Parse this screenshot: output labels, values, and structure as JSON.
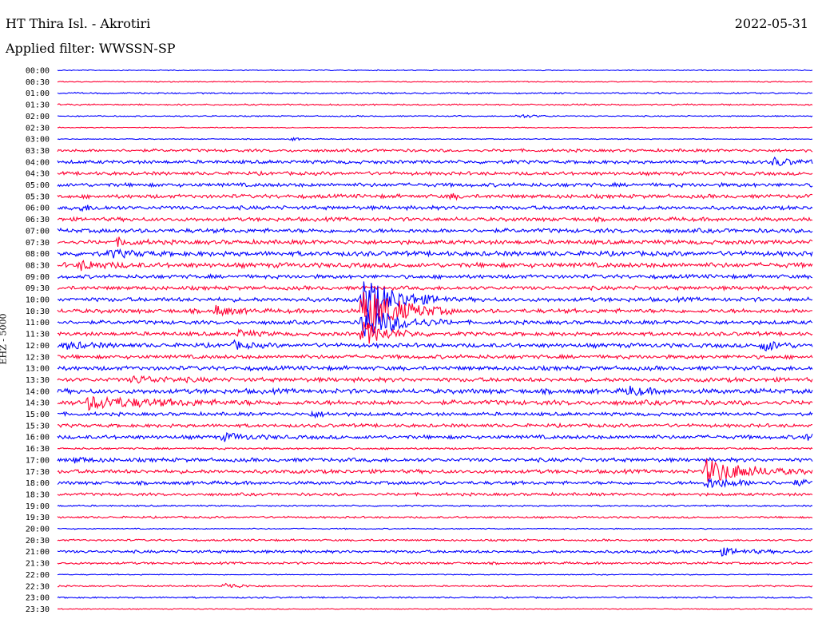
{
  "header": {
    "station": "HT Thira Isl. - Akrotiri",
    "date": "2022-05-31",
    "filter": "Applied filter: WWSSN-SP"
  },
  "chart_data": {
    "type": "line",
    "title": "HT Thira Isl. - Akrotiri",
    "ylabel": "EHZ - 5000",
    "colors": [
      "#0000ff",
      "#ff0033"
    ],
    "categories": [
      "00:00",
      "00:30",
      "01:00",
      "01:30",
      "02:00",
      "02:30",
      "03:00",
      "03:30",
      "04:00",
      "04:30",
      "05:00",
      "05:30",
      "06:00",
      "06:30",
      "07:00",
      "07:30",
      "08:00",
      "08:30",
      "09:00",
      "09:30",
      "10:00",
      "10:30",
      "11:00",
      "11:30",
      "12:00",
      "12:30",
      "13:00",
      "13:30",
      "14:00",
      "14:30",
      "15:00",
      "15:30",
      "16:00",
      "16:30",
      "17:00",
      "17:30",
      "18:00",
      "18:30",
      "19:00",
      "19:30",
      "20:00",
      "20:30",
      "21:00",
      "21:30",
      "22:00",
      "22:30",
      "23:00",
      "23:30"
    ],
    "noise": [
      0.5,
      0.5,
      0.8,
      0.8,
      0.6,
      0.5,
      0.5,
      1.5,
      1.8,
      1.8,
      2.0,
      2.0,
      2.0,
      2.0,
      2.2,
      2.2,
      2.5,
      2.5,
      2.0,
      2.0,
      2.2,
      2.2,
      2.0,
      2.0,
      2.2,
      2.0,
      2.2,
      2.2,
      2.5,
      2.5,
      1.8,
      1.8,
      2.0,
      1.0,
      2.0,
      2.0,
      1.8,
      1.5,
      0.8,
      1.0,
      0.6,
      1.0,
      1.5,
      1.2,
      0.5,
      0.8,
      0.8,
      0.5
    ],
    "events": [
      {
        "row": "02:00",
        "t": 0.61,
        "amp": 2.5,
        "dur": 0.02
      },
      {
        "row": "03:00",
        "t": 0.31,
        "amp": 2,
        "dur": 0.01
      },
      {
        "row": "04:00",
        "t": 0.95,
        "amp": 5,
        "dur": 0.02
      },
      {
        "row": "05:30",
        "t": 0.52,
        "amp": 3,
        "dur": 0.01
      },
      {
        "row": "06:00",
        "t": 0.03,
        "amp": 3,
        "dur": 0.02
      },
      {
        "row": "07:30",
        "t": 0.08,
        "amp": 4,
        "dur": 0.02
      },
      {
        "row": "08:00",
        "t": 0.07,
        "amp": 4,
        "dur": 0.03
      },
      {
        "row": "08:30",
        "t": 0.03,
        "amp": 5,
        "dur": 0.03
      },
      {
        "row": "10:00",
        "t": 0.405,
        "amp": 28,
        "dur": 0.04
      },
      {
        "row": "10:30",
        "t": 0.405,
        "amp": 35,
        "dur": 0.04
      },
      {
        "row": "10:30",
        "t": 0.21,
        "amp": 6,
        "dur": 0.02
      },
      {
        "row": "11:00",
        "t": 0.405,
        "amp": 22,
        "dur": 0.04
      },
      {
        "row": "11:30",
        "t": 0.405,
        "amp": 14,
        "dur": 0.03
      },
      {
        "row": "11:30",
        "t": 0.24,
        "amp": 4,
        "dur": 0.02
      },
      {
        "row": "12:00",
        "t": 0.01,
        "amp": 4,
        "dur": 0.03
      },
      {
        "row": "12:00",
        "t": 0.234,
        "amp": 4,
        "dur": 0.02
      },
      {
        "row": "12:00",
        "t": 0.935,
        "amp": 7,
        "dur": 0.02
      },
      {
        "row": "13:30",
        "t": 0.1,
        "amp": 4,
        "dur": 0.04
      },
      {
        "row": "14:00",
        "t": 0.755,
        "amp": 6,
        "dur": 0.02
      },
      {
        "row": "14:30",
        "t": 0.04,
        "amp": 7,
        "dur": 0.08
      },
      {
        "row": "15:00",
        "t": 0.335,
        "amp": 3,
        "dur": 0.02
      },
      {
        "row": "16:00",
        "t": 0.22,
        "amp": 4,
        "dur": 0.03
      },
      {
        "row": "16:00",
        "t": 0.99,
        "amp": 4,
        "dur": 0.01
      },
      {
        "row": "17:00",
        "t": 0.02,
        "amp": 3,
        "dur": 0.02
      },
      {
        "row": "17:30",
        "t": 0.86,
        "amp": 15,
        "dur": 0.05
      },
      {
        "row": "18:00",
        "t": 0.86,
        "amp": 6,
        "dur": 0.04
      },
      {
        "row": "18:00",
        "t": 0.98,
        "amp": 4,
        "dur": 0.01
      },
      {
        "row": "21:00",
        "t": 0.88,
        "amp": 4,
        "dur": 0.03
      },
      {
        "row": "22:30",
        "t": 0.22,
        "amp": 4,
        "dur": 0.02
      }
    ]
  }
}
